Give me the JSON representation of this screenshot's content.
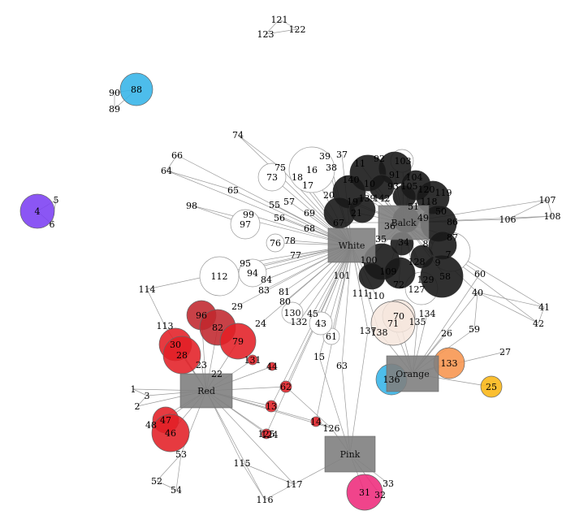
{
  "hubs": [
    {
      "id": "white",
      "label": "White",
      "color": "#808080"
    },
    {
      "id": "balck",
      "label": "Balck",
      "color": "#808080"
    },
    {
      "id": "red",
      "label": "Red",
      "color": "#808080"
    },
    {
      "id": "pink",
      "label": "Pink",
      "color": "#808080"
    },
    {
      "id": "orange",
      "label": "Orange",
      "color": "#808080"
    }
  ],
  "palette": {
    "white": "#ffffff",
    "black": "#1a1a1a",
    "red": "#e21f26",
    "darkred": "#c0272d",
    "pink": "#ee2a7b",
    "orange": "#f7944d",
    "yellow": "#fbb614",
    "blue": "#34b4e8",
    "purple": "#7b3ff2",
    "cream": "#f6e6dd",
    "edge": "#9a9a9a"
  },
  "nodes": [
    {
      "label": "4",
      "color": "purple",
      "size": "large"
    },
    {
      "label": "5"
    },
    {
      "label": "6"
    },
    {
      "label": "88",
      "color": "blue",
      "size": "large"
    },
    {
      "label": "89"
    },
    {
      "label": "90"
    },
    {
      "label": "121"
    },
    {
      "label": "122"
    },
    {
      "label": "123"
    },
    {
      "label": "74"
    },
    {
      "label": "66"
    },
    {
      "label": "64"
    },
    {
      "label": "65"
    },
    {
      "label": "98"
    },
    {
      "label": "99"
    },
    {
      "label": "97"
    },
    {
      "label": "75"
    },
    {
      "label": "73"
    },
    {
      "label": "39"
    },
    {
      "label": "37"
    },
    {
      "label": "16"
    },
    {
      "label": "18"
    },
    {
      "label": "17"
    },
    {
      "label": "38"
    },
    {
      "label": "55"
    },
    {
      "label": "57"
    },
    {
      "label": "56"
    },
    {
      "label": "69"
    },
    {
      "label": "68"
    },
    {
      "label": "76"
    },
    {
      "label": "78"
    },
    {
      "label": "77"
    },
    {
      "label": "112"
    },
    {
      "label": "95"
    },
    {
      "label": "94"
    },
    {
      "label": "84"
    },
    {
      "label": "83"
    },
    {
      "label": "114"
    },
    {
      "label": "113"
    },
    {
      "label": "96",
      "color": "darkred"
    },
    {
      "label": "82",
      "color": "darkred"
    },
    {
      "label": "79",
      "color": "red"
    },
    {
      "label": "29"
    },
    {
      "label": "24"
    },
    {
      "label": "30",
      "color": "red"
    },
    {
      "label": "28",
      "color": "red"
    },
    {
      "label": "23"
    },
    {
      "label": "22"
    },
    {
      "label": "131",
      "color": "red"
    },
    {
      "label": "44",
      "color": "red"
    },
    {
      "label": "81"
    },
    {
      "label": "80"
    },
    {
      "label": "130"
    },
    {
      "label": "132"
    },
    {
      "label": "45"
    },
    {
      "label": "43"
    },
    {
      "label": "61"
    },
    {
      "label": "15"
    },
    {
      "label": "63"
    },
    {
      "label": "62",
      "color": "red"
    },
    {
      "label": "13",
      "color": "red"
    },
    {
      "label": "14",
      "color": "red"
    },
    {
      "label": "125",
      "color": "red"
    },
    {
      "label": "124"
    },
    {
      "label": "126"
    },
    {
      "label": "1"
    },
    {
      "label": "3"
    },
    {
      "label": "2"
    },
    {
      "label": "48"
    },
    {
      "label": "47",
      "color": "red"
    },
    {
      "label": "46",
      "color": "red"
    },
    {
      "label": "53"
    },
    {
      "label": "52"
    },
    {
      "label": "54"
    },
    {
      "label": "115"
    },
    {
      "label": "117"
    },
    {
      "label": "116"
    },
    {
      "label": "31",
      "color": "pink"
    },
    {
      "label": "33"
    },
    {
      "label": "32"
    },
    {
      "label": "101"
    },
    {
      "label": "111"
    },
    {
      "label": "110"
    },
    {
      "label": "137"
    },
    {
      "label": "138"
    },
    {
      "label": "70",
      "color": "cream"
    },
    {
      "label": "71",
      "color": "cream"
    },
    {
      "label": "135"
    },
    {
      "label": "134"
    },
    {
      "label": "26"
    },
    {
      "label": "136",
      "color": "blue"
    },
    {
      "label": "133",
      "color": "orange"
    },
    {
      "label": "25",
      "color": "yellow"
    },
    {
      "label": "27"
    },
    {
      "label": "59"
    },
    {
      "label": "40"
    },
    {
      "label": "60"
    },
    {
      "label": "41"
    },
    {
      "label": "42"
    },
    {
      "label": "106"
    },
    {
      "label": "107"
    },
    {
      "label": "108"
    },
    {
      "label": "11",
      "color": "black"
    },
    {
      "label": "92",
      "color": "black"
    },
    {
      "label": "103"
    },
    {
      "label": "91",
      "color": "black"
    },
    {
      "label": "104",
      "color": "black"
    },
    {
      "label": "93",
      "color": "black"
    },
    {
      "label": "105",
      "color": "black"
    },
    {
      "label": "120",
      "color": "black"
    },
    {
      "label": "119",
      "color": "black"
    },
    {
      "label": "118",
      "color": "black"
    },
    {
      "label": "140",
      "color": "black"
    },
    {
      "label": "10",
      "color": "black"
    },
    {
      "label": "20",
      "color": "black"
    },
    {
      "label": "19",
      "color": "black"
    },
    {
      "label": "139",
      "color": "black"
    },
    {
      "label": "142",
      "color": "black"
    },
    {
      "label": "21",
      "color": "black"
    },
    {
      "label": "67",
      "color": "black"
    },
    {
      "label": "51",
      "color": "black"
    },
    {
      "label": "36",
      "color": "black"
    },
    {
      "label": "50",
      "color": "black"
    },
    {
      "label": "49",
      "color": "black"
    },
    {
      "label": "86",
      "color": "black"
    },
    {
      "label": "87",
      "color": "black"
    },
    {
      "label": "35",
      "color": "black"
    },
    {
      "label": "34",
      "color": "black"
    },
    {
      "label": "8",
      "color": "black"
    },
    {
      "label": "7"
    },
    {
      "label": "9",
      "color": "black"
    },
    {
      "label": "58",
      "color": "black"
    },
    {
      "label": "128",
      "color": "black"
    },
    {
      "label": "100",
      "color": "black"
    },
    {
      "label": "109",
      "color": "black"
    },
    {
      "label": "72",
      "color": "black"
    },
    {
      "label": "127"
    },
    {
      "label": "129"
    }
  ]
}
